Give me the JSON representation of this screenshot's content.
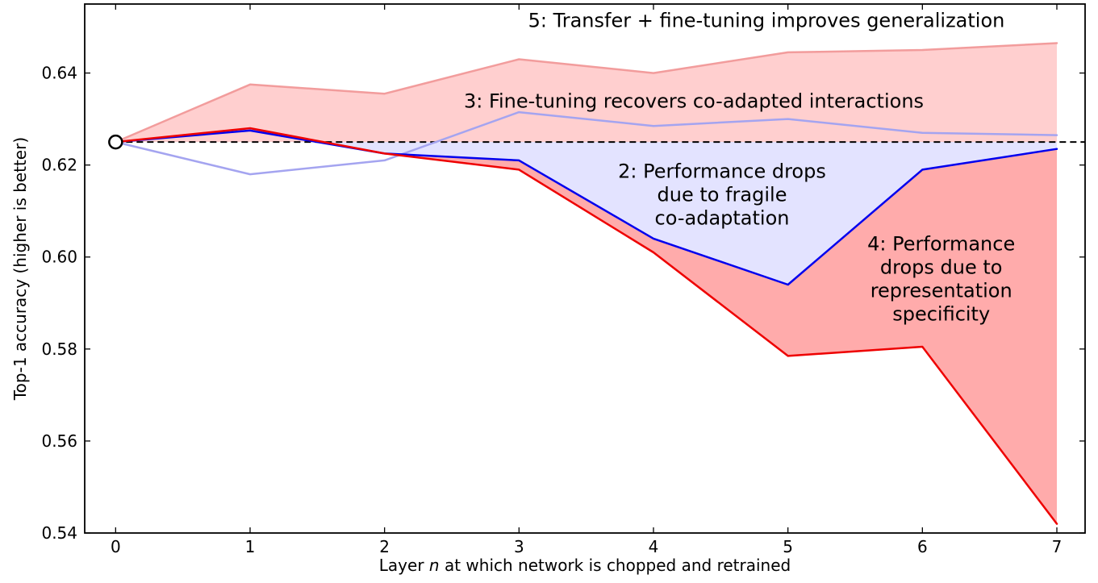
{
  "chart_data": {
    "type": "line",
    "xlabel_parts": [
      "Layer ",
      "n",
      " at which network is chopped and retrained"
    ],
    "ylabel": "Top-1 accuracy (higher is better)",
    "xlim": [
      -0.23,
      7.21
    ],
    "ylim": [
      0.54,
      0.655
    ],
    "xticks": [
      0,
      1,
      2,
      3,
      4,
      5,
      6,
      7
    ],
    "yticks": [
      0.54,
      0.56,
      0.58,
      0.6,
      0.62,
      0.64
    ],
    "ytick_labels": [
      "0.54",
      "0.56",
      "0.58",
      "0.60",
      "0.62",
      "0.64"
    ],
    "grid": false,
    "baseline": {
      "value": 0.625,
      "x1": 0,
      "x2": 7.21,
      "style": "dashed",
      "color": "#000000"
    },
    "marker": {
      "x": 0,
      "y": 0.625,
      "shape": "open-circle",
      "fill": "#ffffff",
      "edge": "#000000"
    },
    "x": [
      0,
      1,
      2,
      3,
      4,
      5,
      6,
      7
    ],
    "series": [
      {
        "name": "5-transfer-plus-finetune",
        "label_num": 5,
        "color": "#f29c9c",
        "values": [
          0.625,
          0.6375,
          0.6355,
          0.643,
          0.64,
          0.6445,
          0.645,
          0.6465
        ]
      },
      {
        "name": "3-selffer-finetune",
        "label_num": 3,
        "color": "#a4a4f0",
        "values": [
          0.625,
          0.618,
          0.621,
          0.6315,
          0.6285,
          0.63,
          0.627,
          0.6265
        ]
      },
      {
        "name": "2-selffer-no-finetune",
        "label_num": 2,
        "color": "#0000ee",
        "values": [
          0.625,
          0.6275,
          0.6225,
          0.621,
          0.604,
          0.594,
          0.619,
          0.6235
        ]
      },
      {
        "name": "4-transfer-no-finetune",
        "label_num": 4,
        "color": "#ee0000",
        "values": [
          0.625,
          0.628,
          0.6225,
          0.619,
          0.601,
          0.5785,
          0.5805,
          0.542
        ]
      }
    ],
    "regions": [
      {
        "id": 5,
        "fill": "rgba(255,0,0,0.19)",
        "upper": [
          [
            0,
            0.625
          ],
          [
            1,
            0.6375
          ],
          [
            2,
            0.6355
          ],
          [
            3,
            0.643
          ],
          [
            4,
            0.64
          ],
          [
            5,
            0.6445
          ],
          [
            6,
            0.645
          ],
          [
            7,
            0.6465
          ]
        ],
        "lower": [
          [
            0,
            0.625
          ],
          [
            7,
            0.625
          ]
        ]
      },
      {
        "id": 2,
        "fill": "rgba(0,0,255,0.11)",
        "upper": [
          [
            1.5,
            0.625
          ],
          [
            7,
            0.625
          ]
        ],
        "lower": [
          [
            1.5,
            0.625
          ],
          [
            2,
            0.6225
          ],
          [
            3,
            0.621
          ],
          [
            4,
            0.604
          ],
          [
            5,
            0.594
          ],
          [
            6,
            0.619
          ],
          [
            7,
            0.6235
          ]
        ]
      },
      {
        "id": 4,
        "fill": "rgba(255,0,0,0.33)",
        "upper": [
          [
            2,
            0.6225
          ],
          [
            3,
            0.621
          ],
          [
            4,
            0.604
          ],
          [
            5,
            0.594
          ],
          [
            6,
            0.619
          ],
          [
            7,
            0.6235
          ]
        ],
        "lower": [
          [
            2,
            0.6225
          ],
          [
            3,
            0.619
          ],
          [
            4,
            0.601
          ],
          [
            5,
            0.5785
          ],
          [
            6,
            0.5805
          ],
          [
            7,
            0.542
          ]
        ]
      }
    ],
    "annotations": [
      {
        "id": 5,
        "x": 4.84,
        "y": 0.6515,
        "lines": [
          "5: Transfer + fine-tuning improves generalization"
        ]
      },
      {
        "id": 3,
        "x": 4.3,
        "y": 0.634,
        "lines": [
          "3: Fine-tuning recovers co-adapted interactions"
        ]
      },
      {
        "id": 2,
        "x": 4.51,
        "y": 0.6187,
        "lines": [
          "2: Performance drops",
          "due to fragile",
          "co-adaptation"
        ]
      },
      {
        "id": 4,
        "x": 6.14,
        "y": 0.6029,
        "lines": [
          "4: Performance",
          "drops due to",
          "representation",
          "specificity"
        ]
      }
    ]
  }
}
